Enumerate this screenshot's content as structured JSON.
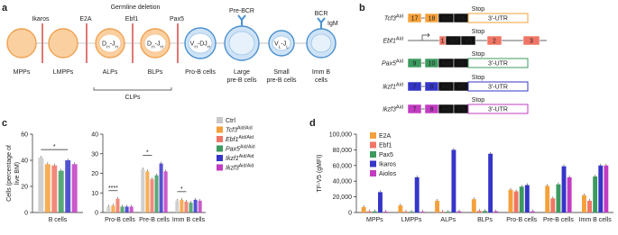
{
  "panel_a": {
    "label": "a",
    "title": "Germline deletion",
    "deletions": [
      "Ikaros",
      "E2A",
      "Ebf1",
      "Pax5"
    ],
    "cells": [
      {
        "label": [
          "MPPs"
        ]
      },
      {
        "label": [
          "LMPPs"
        ]
      },
      {
        "label": [
          "ALPs"
        ],
        "nucleus": [
          {
            "t": "D",
            "s": "H"
          },
          {
            "t": "-J",
            "s": "H"
          }
        ]
      },
      {
        "label": [
          "BLPs"
        ],
        "nucleus": [
          {
            "t": "D",
            "s": "H"
          },
          {
            "t": "-J",
            "s": "H"
          }
        ]
      },
      {
        "label": [
          "Pro-B cells"
        ],
        "nucleus": [
          {
            "t": "V",
            "s": "H"
          },
          {
            "t": "-DJ",
            "s": "H"
          }
        ]
      },
      {
        "label": [
          "Large",
          "pre-B cells"
        ],
        "receptor": "Pre-BCR"
      },
      {
        "label": [
          "Small",
          "pre-B cells"
        ],
        "nucleus": [
          {
            "t": "V",
            "s": "L"
          },
          {
            "t": "-J",
            "s": "L"
          }
        ]
      },
      {
        "label": [
          "Imm B",
          "cells"
        ],
        "receptor": "BCR",
        "receptor_sub": "IgM"
      }
    ],
    "group": "CLPs"
  },
  "panel_b": {
    "label": "b",
    "stop": "Stop",
    "constructs": [
      {
        "gene": "Tcf3",
        "sup": "Aid",
        "color": "#f5a03a",
        "parts": [
          "17",
          "18",
          "Aid",
          "V5",
          "3′-UTR"
        ]
      },
      {
        "gene": "Ebf1",
        "sup": "Aid",
        "color": "#f07565",
        "parts": [
          "1",
          "Aid",
          "V5",
          "2",
          "3"
        ]
      },
      {
        "gene": "Pax5",
        "sup": "Aid",
        "color": "#3c9a5f",
        "parts": [
          "9",
          "10",
          "Aid",
          "V5",
          "3′-UTR"
        ]
      },
      {
        "gene": "Ikzf1",
        "sup": "Aid",
        "color": "#3535c8",
        "parts": [
          "7",
          "8",
          "Aid",
          "V5",
          "3′-UTR"
        ]
      },
      {
        "gene": "Ikzf3",
        "sup": "Aid",
        "color": "#c23cc2",
        "parts": [
          "7",
          "8",
          "Aid",
          "V5",
          "3′-UTR"
        ]
      }
    ]
  },
  "panel_labels": [
    "c",
    "d"
  ],
  "chart_data": [
    {
      "type": "bar",
      "ylabel": [
        "Cells (percentage of",
        "live BM)"
      ],
      "categories": [
        "B cells"
      ],
      "ylim": [
        0,
        60
      ],
      "yticks": [
        0,
        20,
        40,
        60
      ],
      "significance": [
        "*"
      ],
      "series": [
        {
          "color": "#c8c8c8",
          "values": [
            42
          ]
        },
        {
          "color": "#f5a03a",
          "values": [
            37
          ]
        },
        {
          "color": "#f07565",
          "values": [
            36
          ]
        },
        {
          "color": "#3c9a5f",
          "values": [
            32
          ]
        },
        {
          "color": "#3535c8",
          "values": [
            40
          ]
        },
        {
          "color": "#c23cc2",
          "values": [
            37
          ]
        }
      ]
    },
    {
      "type": "bar",
      "categories": [
        "Pro-B cells",
        "Pre-B cells",
        "Imm B cells"
      ],
      "ylim": [
        0,
        40
      ],
      "yticks": [
        0,
        10,
        20,
        30,
        40
      ],
      "significance": [
        "****",
        "*",
        "*"
      ],
      "series": [
        {
          "name": "Ctrl",
          "color": "#c8c8c8",
          "values": [
            3,
            22,
            6
          ]
        },
        {
          "name": "Tcf3",
          "sup": "Aid/Aid",
          "color": "#f5a03a",
          "values": [
            3.5,
            21,
            6.5
          ]
        },
        {
          "name": "Ebf1",
          "sup": "Aid/Aid",
          "color": "#f07565",
          "values": [
            7,
            17,
            5.5
          ]
        },
        {
          "name": "Pax5",
          "sup": "Aid/Aid",
          "color": "#3c9a5f",
          "values": [
            3,
            19,
            5
          ]
        },
        {
          "name": "Ikzf1",
          "sup": "Aid/Aid",
          "color": "#3535c8",
          "values": [
            3,
            25,
            6.5
          ]
        },
        {
          "name": "Ikzf3",
          "sup": "Aid/Aid",
          "color": "#c23cc2",
          "values": [
            3,
            21,
            6
          ]
        }
      ]
    },
    {
      "type": "bar",
      "ylabel": [
        "TF-V5 (gMFI)"
      ],
      "categories": [
        "MPPs",
        "LMPPs",
        "ALPs",
        "BLPs",
        "Pro-B cells",
        "Pre-B cells",
        "Imm B cells"
      ],
      "ylim": [
        0,
        100000
      ],
      "yticks": [
        0,
        {
          "value": 20000,
          "label": "20,000"
        },
        {
          "value": 40000,
          "label": "40,000"
        },
        {
          "value": 60000,
          "label": "60,000"
        },
        {
          "value": 80000,
          "label": "80,000"
        },
        {
          "value": 100000,
          "label": "100,000"
        }
      ],
      "series": [
        {
          "name": "E2A",
          "color": "#f5a03a",
          "values": [
            7000,
            9000,
            15000,
            17000,
            29000,
            34000,
            22000
          ]
        },
        {
          "name": "Ebf1",
          "color": "#f07565",
          "values": [
            1500,
            1000,
            1000,
            2000,
            27000,
            18000,
            15000
          ]
        },
        {
          "name": "Pax5",
          "color": "#3c9a5f",
          "values": [
            1500,
            1000,
            1000,
            2000,
            33000,
            36000,
            46000
          ]
        },
        {
          "name": "Ikaros",
          "color": "#3535c8",
          "values": [
            26000,
            45000,
            80000,
            75000,
            35000,
            59000,
            60000
          ]
        },
        {
          "name": "Aiolos",
          "color": "#c23cc2",
          "values": [
            1000,
            1000,
            1500,
            1500,
            1500,
            45000,
            60000
          ]
        }
      ]
    }
  ]
}
